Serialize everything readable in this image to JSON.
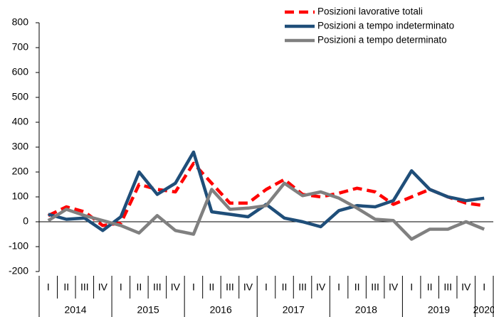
{
  "chart_data": {
    "type": "line",
    "categories": [
      "I",
      "II",
      "III",
      "IV",
      "I",
      "II",
      "III",
      "IV",
      "I",
      "II",
      "III",
      "IV",
      "I",
      "II",
      "III",
      "IV",
      "I",
      "II",
      "III",
      "IV",
      "I",
      "II",
      "III",
      "IV",
      "I"
    ],
    "years": [
      "2014",
      "2015",
      "2016",
      "2017",
      "2018",
      "2019",
      "2020"
    ],
    "series": [
      {
        "name": "Posizioni lavorative totali",
        "color": "#ff0000",
        "dashed": true,
        "values": [
          25,
          60,
          40,
          -15,
          -5,
          150,
          130,
          120,
          235,
          155,
          75,
          75,
          130,
          170,
          110,
          100,
          115,
          135,
          120,
          70,
          100,
          130,
          100,
          75,
          65
        ]
      },
      {
        "name": "Posizioni a tempo indeterminato",
        "color": "#1f4e79",
        "dashed": false,
        "values": [
          30,
          10,
          15,
          -35,
          20,
          200,
          110,
          155,
          280,
          40,
          30,
          20,
          70,
          15,
          0,
          -20,
          45,
          65,
          60,
          85,
          205,
          130,
          100,
          85,
          95
        ]
      },
      {
        "name": "Posizioni a  tempo determinato",
        "color": "#808080",
        "dashed": false,
        "values": [
          5,
          50,
          25,
          5,
          -15,
          -45,
          25,
          -35,
          -50,
          130,
          50,
          55,
          65,
          155,
          105,
          120,
          95,
          55,
          10,
          5,
          -70,
          -30,
          -30,
          0,
          -30
        ]
      }
    ],
    "ylim": [
      -200,
      800
    ],
    "yticks": [
      -200,
      -100,
      0,
      100,
      200,
      300,
      400,
      500,
      600,
      700,
      800
    ],
    "legend": "top-right"
  }
}
